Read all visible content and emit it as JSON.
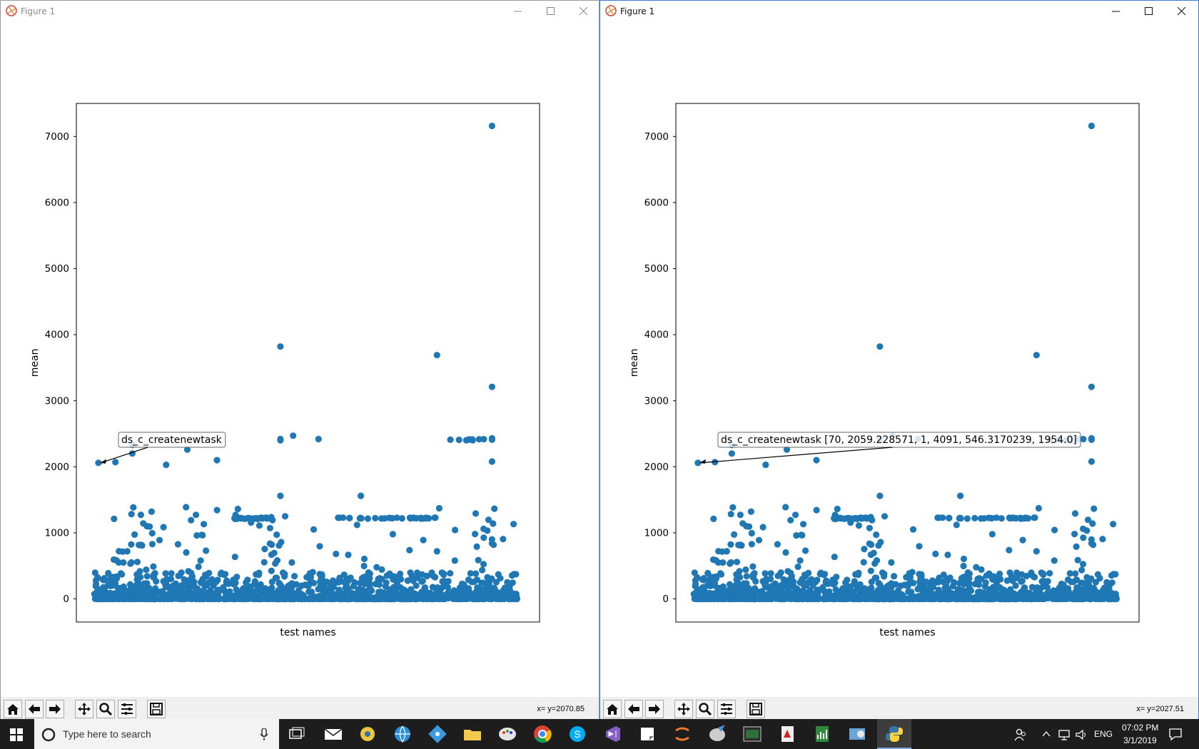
{
  "windows": [
    {
      "title": "Figure 1",
      "annotation": "ds_c_createnewtask",
      "coords": "x= y=2070.85"
    },
    {
      "title": "Figure 1",
      "annotation": "ds_c_createnewtask [70, 2059.228571, 1, 4091, 546.3170239, 1954.0]",
      "coords": "x= y=2027.51"
    }
  ],
  "toolbar_icons": [
    "home-icon",
    "back-icon",
    "forward-icon",
    "pan-icon",
    "zoom-icon",
    "configure-subplots-icon",
    "save-icon"
  ],
  "taskbar": {
    "search_placeholder": "Type here to search",
    "language": "ENG",
    "time": "07:02 PM",
    "date": "3/1/2019"
  },
  "colors": {
    "marker": "#1f77b4",
    "accent": "#3a7bd5",
    "taskbar": "#1d1d1d"
  },
  "chart_data": {
    "type": "scatter",
    "xlabel": "test names",
    "ylabel": "mean",
    "ylim": [
      -350,
      7500
    ],
    "yticks": [
      0,
      1000,
      2000,
      3000,
      4000,
      5000,
      6000,
      7000
    ],
    "x_tick_labels": "none",
    "notable_points": [
      {
        "x": 0.94,
        "y": 7160
      },
      {
        "x": 0.44,
        "y": 3820
      },
      {
        "x": 0.81,
        "y": 3690
      },
      {
        "x": 0.94,
        "y": 3210
      },
      {
        "x": 0.01,
        "y": 2059
      }
    ],
    "description": "thousands of points, most 0-300; horizontal bands near 1220 and 2410"
  }
}
